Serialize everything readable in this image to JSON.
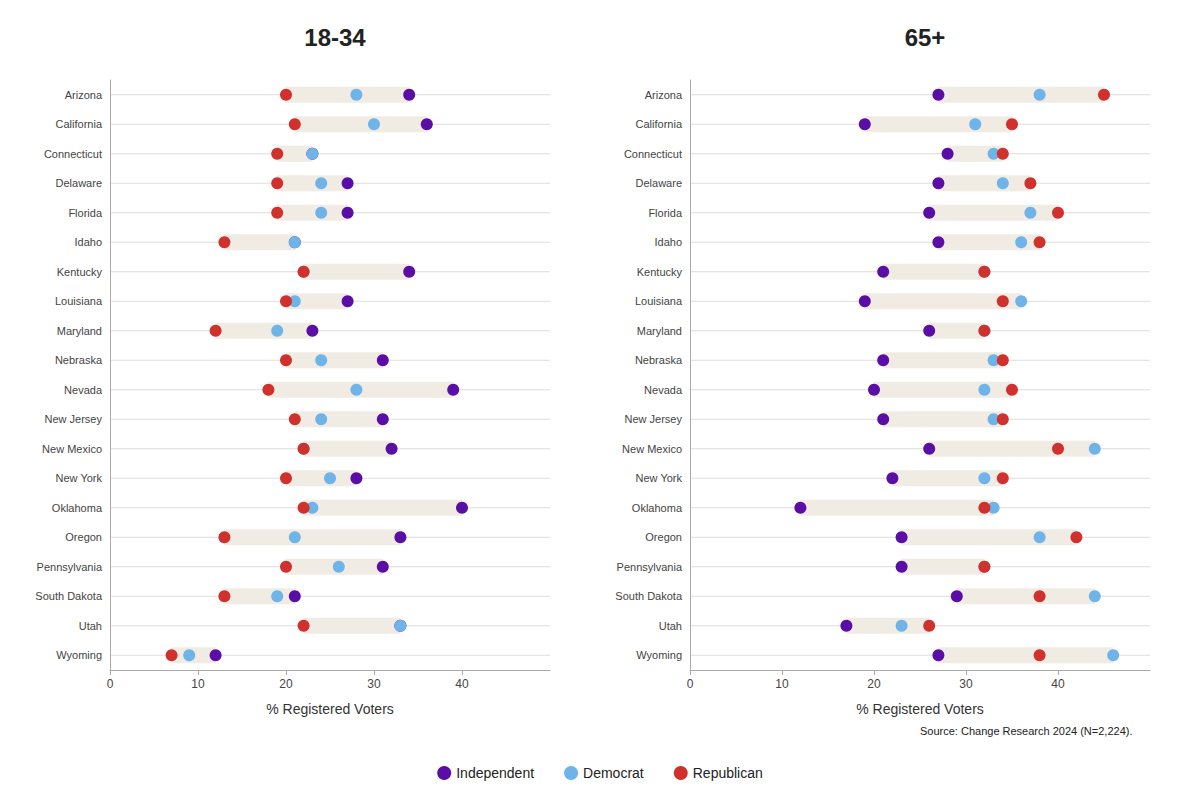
{
  "chart_data": [
    {
      "type": "scatter",
      "title": "18-34",
      "categories": [
        "Arizona",
        "California",
        "Connecticut",
        "Delaware",
        "Florida",
        "Idaho",
        "Kentucky",
        "Louisiana",
        "Maryland",
        "Nebraska",
        "Nevada",
        "New Jersey",
        "New Mexico",
        "New York",
        "Oklahoma",
        "Oregon",
        "Pennsylvania",
        "South Dakota",
        "Utah",
        "Wyoming"
      ],
      "series": [
        {
          "name": "Independent",
          "color": "#5B0EA6",
          "values": [
            34,
            36,
            23,
            27,
            27,
            21,
            34,
            27,
            23,
            31,
            39,
            31,
            32,
            28,
            40,
            33,
            31,
            21,
            33,
            12
          ]
        },
        {
          "name": "Democrat",
          "color": "#6EB4E8",
          "values": [
            28,
            30,
            23,
            24,
            24,
            21,
            22,
            21,
            19,
            24,
            28,
            24,
            22,
            25,
            23,
            21,
            26,
            19,
            33,
            9
          ]
        },
        {
          "name": "Republican",
          "color": "#D0312D",
          "values": [
            20,
            21,
            19,
            19,
            19,
            13,
            22,
            20,
            12,
            20,
            18,
            21,
            22,
            20,
            22,
            13,
            20,
            13,
            22,
            7
          ]
        }
      ],
      "xlim": [
        0,
        50
      ],
      "xticks": [
        0,
        10,
        20,
        30,
        40
      ],
      "xlabel": "% Registered Voters",
      "legend": "bottom"
    },
    {
      "type": "scatter",
      "title": "65+",
      "categories": [
        "Arizona",
        "California",
        "Connecticut",
        "Delaware",
        "Florida",
        "Idaho",
        "Kentucky",
        "Louisiana",
        "Maryland",
        "Nebraska",
        "Nevada",
        "New Jersey",
        "New Mexico",
        "New York",
        "Oklahoma",
        "Oregon",
        "Pennsylvania",
        "South Dakota",
        "Utah",
        "Wyoming"
      ],
      "series": [
        {
          "name": "Independent",
          "color": "#5B0EA6",
          "values": [
            27,
            19,
            28,
            27,
            26,
            27,
            21,
            19,
            26,
            21,
            20,
            21,
            26,
            22,
            12,
            23,
            23,
            29,
            17,
            27
          ]
        },
        {
          "name": "Democrat",
          "color": "#6EB4E8",
          "values": [
            38,
            31,
            33,
            34,
            37,
            36,
            32,
            36,
            32,
            33,
            32,
            33,
            44,
            32,
            33,
            38,
            32,
            44,
            23,
            46
          ]
        },
        {
          "name": "Republican",
          "color": "#D0312D",
          "values": [
            45,
            35,
            34,
            37,
            40,
            38,
            32,
            34,
            32,
            34,
            35,
            34,
            40,
            34,
            32,
            42,
            32,
            38,
            26,
            38
          ]
        }
      ],
      "xlim": [
        0,
        50
      ],
      "xticks": [
        0,
        10,
        20,
        30,
        40
      ],
      "xlabel": "% Registered Voters",
      "legend": "bottom",
      "annotation": "Source: Change Research 2024 (N=2,224)."
    }
  ]
}
